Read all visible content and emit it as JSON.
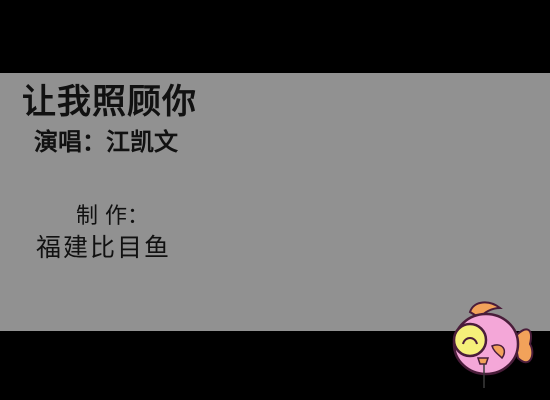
{
  "song": {
    "title": "让我照顾你",
    "singer_line": "演唱：江凯文"
  },
  "credits": {
    "label": "制 作：",
    "maker": "福建比目鱼"
  },
  "mascot": {
    "icon": "fish-mascot-icon",
    "colors": {
      "body": "#f4a7d8",
      "fin": "#f2a25a",
      "eye": "#f5f07a",
      "outline": "#4a1d3a"
    }
  },
  "colors": {
    "background": "#000000",
    "panel": "#919191",
    "text": "#111111"
  }
}
